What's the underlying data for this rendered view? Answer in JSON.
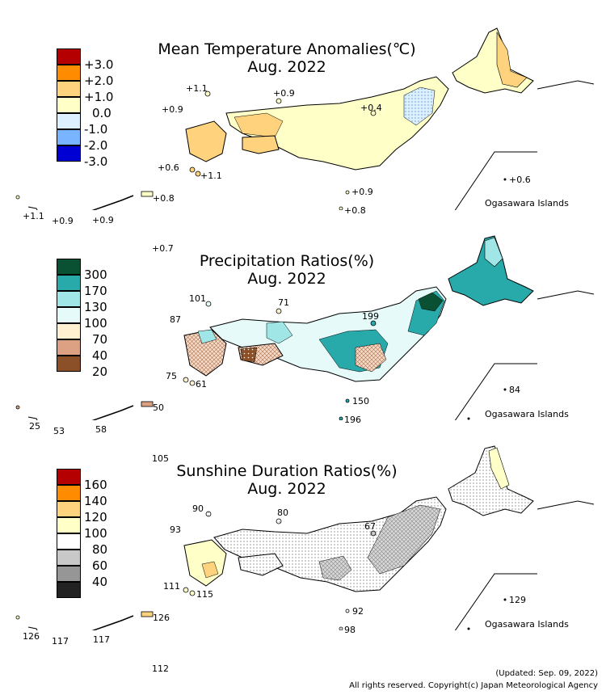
{
  "panels": [
    {
      "title": "Mean Temperature Anomalies(℃)",
      "subtitle": "Aug. 2022",
      "legend": [
        {
          "label": "+3.0",
          "color": "#b40000"
        },
        {
          "label": "+2.0",
          "color": "#ff8c00"
        },
        {
          "label": "+1.0",
          "color": "#ffd27d"
        },
        {
          "label": "0.0",
          "color": "#ffffc8"
        },
        {
          "label": "-1.0",
          "color": "#dcf0ff"
        },
        {
          "label": "-2.0",
          "color": "#78b4ff"
        },
        {
          "label": "-3.0",
          "color": "#0000d2"
        }
      ],
      "values": [
        "+1.1",
        "+0.9",
        "+0.9",
        "+0.4",
        "+0.6",
        "+1.1",
        "+0.6",
        "+0.9",
        "+0.8",
        "+0.8",
        "+1.1",
        "+0.9",
        "+0.9",
        "+0.7"
      ],
      "ogasawara_label": "Ogasawara Islands"
    },
    {
      "title": "Precipitation Ratios(%)",
      "subtitle": "Aug. 2022",
      "legend": [
        {
          "label": "300",
          "color": "#0a5032"
        },
        {
          "label": "170",
          "color": "#28aaaa"
        },
        {
          "label": "130",
          "color": "#a0e6e6"
        },
        {
          "label": "100",
          "color": "#e6fafa"
        },
        {
          "label": "70",
          "color": "#fff0d2"
        },
        {
          "label": "40",
          "color": "#dca082"
        },
        {
          "label": "20",
          "color": "#8c5028"
        }
      ],
      "values": [
        "101",
        "71",
        "87",
        "199",
        "75",
        "61",
        "84",
        "150",
        "196",
        "50",
        "25",
        "53",
        "58",
        "105"
      ],
      "ogasawara_label": "Ogasawara Islands"
    },
    {
      "title": "Sunshine Duration Ratios(%)",
      "subtitle": "Aug. 2022",
      "legend": [
        {
          "label": "160",
          "color": "#b40000"
        },
        {
          "label": "140",
          "color": "#ff8c00"
        },
        {
          "label": "120",
          "color": "#ffd27d"
        },
        {
          "label": "100",
          "color": "#ffffc8"
        },
        {
          "label": "80",
          "color": "#ffffff"
        },
        {
          "label": "60",
          "color": "#c8c8c8"
        },
        {
          "label": "40",
          "color": "#969696"
        }
      ],
      "values": [
        "90",
        "80",
        "93",
        "67",
        "111",
        "115",
        "129",
        "92",
        "98",
        "126",
        "126",
        "117",
        "117",
        "112"
      ],
      "ogasawara_label": "Ogasawara Islands"
    }
  ],
  "footer": {
    "updated": "(Updated: Sep. 09, 2022)",
    "copyright": "All rights reserved. Copyright(c) Japan Meteorological Agency"
  }
}
